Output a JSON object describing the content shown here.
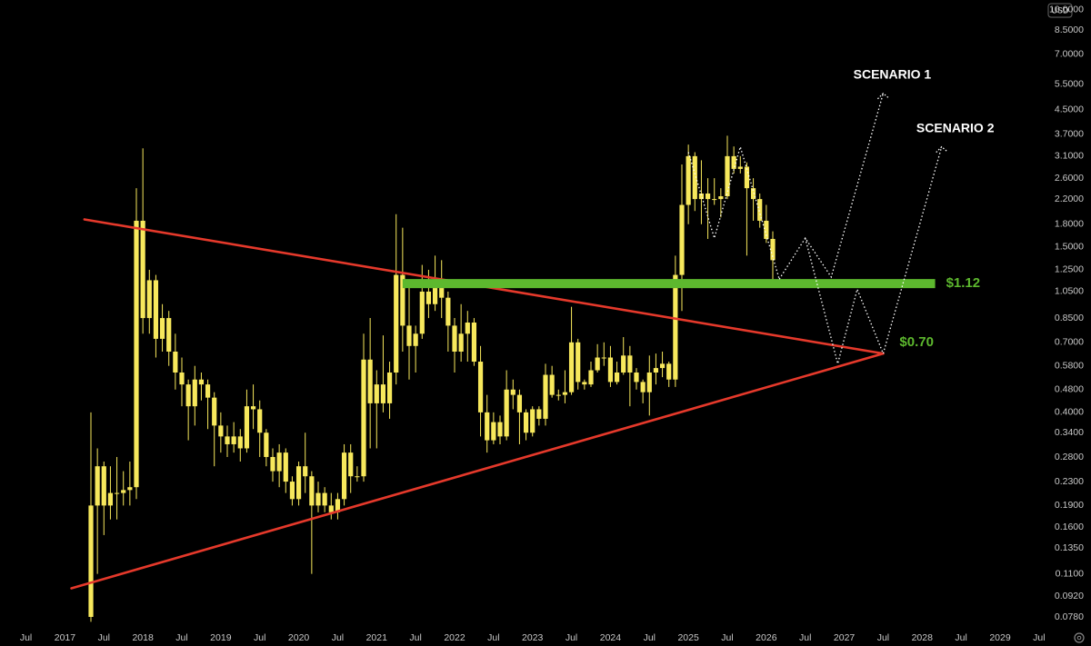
{
  "chart_data": {
    "type": "candlestick",
    "currency": "USD",
    "log_scale": true,
    "color": "#f7e85c",
    "x": [
      "2017-05",
      "2017-06",
      "2017-07",
      "2017-08",
      "2017-09",
      "2017-10",
      "2017-11",
      "2017-12",
      "2018-01",
      "2018-02",
      "2018-03",
      "2018-04",
      "2018-05",
      "2018-06",
      "2018-07",
      "2018-08",
      "2018-09",
      "2018-10",
      "2018-11",
      "2018-12",
      "2019-01",
      "2019-02",
      "2019-03",
      "2019-04",
      "2019-05",
      "2019-06",
      "2019-07",
      "2019-08",
      "2019-09",
      "2019-10",
      "2019-11",
      "2019-12",
      "2020-01",
      "2020-02",
      "2020-03",
      "2020-04",
      "2020-05",
      "2020-06",
      "2020-07",
      "2020-08",
      "2020-09",
      "2020-10",
      "2020-11",
      "2020-12",
      "2021-01",
      "2021-02",
      "2021-03",
      "2021-04",
      "2021-05",
      "2021-06",
      "2021-07",
      "2021-08",
      "2021-09",
      "2021-10",
      "2021-11",
      "2021-12",
      "2022-01",
      "2022-02",
      "2022-03",
      "2022-04",
      "2022-05",
      "2022-06",
      "2022-07",
      "2022-08",
      "2022-09",
      "2022-10",
      "2022-11",
      "2022-12",
      "2023-01",
      "2023-02",
      "2023-03",
      "2023-04",
      "2023-05",
      "2023-06",
      "2023-07",
      "2023-08",
      "2023-09",
      "2023-10",
      "2023-11",
      "2023-12",
      "2024-01",
      "2024-02",
      "2024-03",
      "2024-04",
      "2024-05",
      "2024-06",
      "2024-07",
      "2024-08",
      "2024-09",
      "2024-10",
      "2024-11",
      "2024-12",
      "2025-01",
      "2025-02",
      "2025-03",
      "2025-04",
      "2025-05",
      "2025-06",
      "2025-07",
      "2025-08",
      "2025-09",
      "2025-10",
      "2025-11",
      "2025-12",
      "2026-01",
      "2026-02"
    ],
    "open": [
      0.078,
      0.19,
      0.26,
      0.19,
      0.21,
      0.21,
      0.215,
      0.22,
      1.85,
      0.85,
      1.15,
      0.72,
      0.85,
      0.65,
      0.55,
      0.5,
      0.42,
      0.52,
      0.5,
      0.45,
      0.36,
      0.33,
      0.31,
      0.33,
      0.3,
      0.42,
      0.41,
      0.34,
      0.28,
      0.25,
      0.29,
      0.23,
      0.2,
      0.26,
      0.24,
      0.19,
      0.21,
      0.19,
      0.18,
      0.2,
      0.29,
      0.24,
      0.24,
      0.61,
      0.43,
      0.5,
      0.43,
      0.55,
      1.2,
      0.8,
      0.68,
      0.75,
      1.05,
      0.95,
      1.1,
      1.0,
      0.8,
      0.65,
      0.75,
      0.82,
      0.6,
      0.4,
      0.32,
      0.37,
      0.33,
      0.48,
      0.46,
      0.4,
      0.34,
      0.41,
      0.38,
      0.54,
      0.46,
      0.46,
      0.47,
      0.7,
      0.51,
      0.5,
      0.56,
      0.62,
      0.62,
      0.51,
      0.55,
      0.63,
      0.55,
      0.51,
      0.47,
      0.55,
      0.57,
      0.59,
      0.52,
      1.2,
      2.1,
      3.1,
      2.2,
      2.3,
      2.2,
      2.2,
      2.25,
      3.1,
      2.8,
      2.85,
      2.4,
      2.2,
      1.85,
      1.6
    ],
    "high": [
      0.4,
      0.3,
      0.27,
      0.26,
      0.28,
      0.25,
      0.27,
      2.4,
      3.3,
      1.25,
      1.2,
      0.95,
      0.9,
      0.75,
      0.62,
      0.52,
      0.58,
      0.55,
      0.52,
      0.47,
      0.4,
      0.36,
      0.37,
      0.35,
      0.48,
      0.5,
      0.44,
      0.35,
      0.3,
      0.31,
      0.3,
      0.24,
      0.27,
      0.34,
      0.25,
      0.23,
      0.22,
      0.21,
      0.21,
      0.31,
      0.31,
      0.26,
      0.75,
      0.85,
      0.56,
      0.74,
      0.6,
      1.95,
      1.75,
      1.1,
      0.8,
      1.3,
      1.25,
      1.4,
      1.35,
      1.05,
      0.85,
      0.95,
      0.9,
      0.85,
      0.68,
      0.46,
      0.4,
      0.39,
      0.56,
      0.52,
      0.48,
      0.41,
      0.42,
      0.42,
      0.59,
      0.58,
      0.48,
      0.56,
      0.93,
      0.72,
      0.52,
      0.6,
      0.69,
      0.7,
      0.68,
      0.6,
      0.73,
      0.68,
      0.57,
      0.52,
      0.63,
      0.64,
      0.65,
      0.6,
      1.4,
      2.9,
      3.4,
      3.2,
      3.0,
      2.6,
      2.6,
      2.4,
      3.65,
      3.35,
      3.1,
      2.95,
      2.6,
      2.3,
      2.1,
      1.7
    ],
    "low": [
      0.075,
      0.11,
      0.15,
      0.17,
      0.17,
      0.19,
      0.19,
      0.2,
      0.75,
      0.75,
      0.62,
      0.65,
      0.58,
      0.48,
      0.42,
      0.32,
      0.36,
      0.44,
      0.35,
      0.26,
      0.29,
      0.28,
      0.29,
      0.27,
      0.29,
      0.35,
      0.28,
      0.26,
      0.23,
      0.22,
      0.21,
      0.19,
      0.19,
      0.21,
      0.11,
      0.18,
      0.18,
      0.17,
      0.17,
      0.19,
      0.21,
      0.23,
      0.23,
      0.3,
      0.3,
      0.4,
      0.38,
      0.5,
      0.65,
      0.52,
      0.55,
      0.72,
      0.85,
      0.9,
      0.85,
      0.65,
      0.55,
      0.6,
      0.6,
      0.58,
      0.33,
      0.29,
      0.31,
      0.31,
      0.32,
      0.41,
      0.31,
      0.32,
      0.33,
      0.36,
      0.36,
      0.45,
      0.44,
      0.43,
      0.46,
      0.48,
      0.48,
      0.49,
      0.55,
      0.58,
      0.49,
      0.5,
      0.54,
      0.42,
      0.48,
      0.43,
      0.39,
      0.5,
      0.53,
      0.49,
      0.49,
      0.9,
      1.8,
      2.0,
      1.8,
      1.6,
      2.1,
      1.9,
      2.2,
      2.7,
      2.7,
      1.4,
      1.85,
      1.75,
      1.55,
      1.12
    ],
    "close": [
      0.19,
      0.26,
      0.19,
      0.21,
      0.21,
      0.215,
      0.22,
      1.85,
      0.85,
      1.15,
      0.72,
      0.85,
      0.65,
      0.55,
      0.5,
      0.42,
      0.52,
      0.5,
      0.45,
      0.36,
      0.33,
      0.31,
      0.33,
      0.3,
      0.42,
      0.41,
      0.34,
      0.28,
      0.25,
      0.29,
      0.23,
      0.2,
      0.26,
      0.24,
      0.19,
      0.21,
      0.19,
      0.18,
      0.2,
      0.29,
      0.24,
      0.24,
      0.61,
      0.43,
      0.5,
      0.43,
      0.55,
      1.2,
      0.8,
      0.68,
      0.75,
      1.05,
      0.95,
      1.1,
      1.0,
      0.8,
      0.65,
      0.75,
      0.82,
      0.6,
      0.4,
      0.32,
      0.37,
      0.33,
      0.48,
      0.46,
      0.4,
      0.34,
      0.41,
      0.38,
      0.54,
      0.46,
      0.46,
      0.47,
      0.7,
      0.51,
      0.5,
      0.56,
      0.62,
      0.62,
      0.51,
      0.55,
      0.63,
      0.55,
      0.51,
      0.47,
      0.55,
      0.57,
      0.59,
      0.52,
      1.2,
      2.1,
      3.1,
      2.2,
      2.3,
      2.2,
      2.2,
      2.25,
      3.1,
      2.8,
      2.85,
      2.4,
      2.2,
      1.85,
      1.6,
      1.35
    ],
    "xlim": [
      "2016-03",
      "2029-08"
    ],
    "xticks": [
      {
        "value": "2016-07",
        "label": "Jul"
      },
      {
        "value": "2017-01",
        "label": "2017"
      },
      {
        "value": "2017-07",
        "label": "Jul"
      },
      {
        "value": "2018-01",
        "label": "2018"
      },
      {
        "value": "2018-07",
        "label": "Jul"
      },
      {
        "value": "2019-01",
        "label": "2019"
      },
      {
        "value": "2019-07",
        "label": "Jul"
      },
      {
        "value": "2020-01",
        "label": "2020"
      },
      {
        "value": "2020-07",
        "label": "Jul"
      },
      {
        "value": "2021-01",
        "label": "2021"
      },
      {
        "value": "2021-07",
        "label": "Jul"
      },
      {
        "value": "2022-01",
        "label": "2022"
      },
      {
        "value": "2022-07",
        "label": "Jul"
      },
      {
        "value": "2023-01",
        "label": "2023"
      },
      {
        "value": "2023-07",
        "label": "Jul"
      },
      {
        "value": "2024-01",
        "label": "2024"
      },
      {
        "value": "2024-07",
        "label": "Jul"
      },
      {
        "value": "2025-01",
        "label": "2025"
      },
      {
        "value": "2025-07",
        "label": "Jul"
      },
      {
        "value": "2026-01",
        "label": "2026"
      },
      {
        "value": "2026-07",
        "label": "Jul"
      },
      {
        "value": "2027-01",
        "label": "2027"
      },
      {
        "value": "2027-07",
        "label": "Jul"
      },
      {
        "value": "2028-01",
        "label": "2028"
      },
      {
        "value": "2028-07",
        "label": "Jul"
      },
      {
        "value": "2029-01",
        "label": "2029"
      },
      {
        "value": "2029-07",
        "label": "Jul"
      }
    ],
    "ylim": [
      0.072,
      10.8
    ],
    "yticks": [
      {
        "value": 10,
        "label": "10.0000"
      },
      {
        "value": 8.5,
        "label": "8.5000"
      },
      {
        "value": 7,
        "label": "7.0000"
      },
      {
        "value": 5.5,
        "label": "5.5000"
      },
      {
        "value": 4.5,
        "label": "4.5000"
      },
      {
        "value": 3.7,
        "label": "3.7000"
      },
      {
        "value": 3.1,
        "label": "3.1000"
      },
      {
        "value": 2.6,
        "label": "2.6000"
      },
      {
        "value": 2.2,
        "label": "2.2000"
      },
      {
        "value": 1.8,
        "label": "1.8000"
      },
      {
        "value": 1.5,
        "label": "1.5000"
      },
      {
        "value": 1.25,
        "label": "1.2500"
      },
      {
        "value": 1.05,
        "label": "1.0500"
      },
      {
        "value": 0.85,
        "label": "0.8500"
      },
      {
        "value": 0.7,
        "label": "0.7000"
      },
      {
        "value": 0.58,
        "label": "0.5800"
      },
      {
        "value": 0.48,
        "label": "0.4800"
      },
      {
        "value": 0.4,
        "label": "0.4000"
      },
      {
        "value": 0.34,
        "label": "0.3400"
      },
      {
        "value": 0.28,
        "label": "0.2800"
      },
      {
        "value": 0.23,
        "label": "0.2300"
      },
      {
        "value": 0.19,
        "label": "0.1900"
      },
      {
        "value": 0.16,
        "label": "0.1600"
      },
      {
        "value": 0.135,
        "label": "0.1350"
      },
      {
        "value": 0.11,
        "label": "0.1100"
      },
      {
        "value": 0.092,
        "label": "0.0920"
      },
      {
        "value": 0.078,
        "label": "0.0780"
      }
    ],
    "trendlines": [
      {
        "x": [
          "2017-04",
          "2027-07"
        ],
        "y": [
          1.87,
          0.64
        ],
        "color": "#e5392b"
      },
      {
        "x": [
          "2017-02",
          "2027-07"
        ],
        "y": [
          0.098,
          0.64
        ],
        "color": "#e5392b"
      }
    ],
    "zone": {
      "x": [
        "2021-05",
        "2028-03"
      ],
      "value": 1.12,
      "label": "$1.12",
      "color": "#5db82e"
    },
    "level": {
      "value": 0.7,
      "label": "$0.70",
      "color": "#5db82e"
    },
    "paths": [
      {
        "x": [
          "2025-01",
          "2025-05",
          "2025-09",
          "2026-03"
        ],
        "y": [
          3.2,
          1.61,
          3.34,
          1.16
        ]
      },
      {
        "label": "SCENARIO 1",
        "x": [
          "2026-03",
          "2026-07",
          "2026-11",
          "2027-07"
        ],
        "y": [
          1.16,
          1.61,
          1.18,
          5.12
        ]
      },
      {
        "label": "SCENARIO 2",
        "x": [
          "2026-07",
          "2026-12",
          "2027-03",
          "2027-07",
          "2028-04"
        ],
        "y": [
          1.61,
          0.59,
          1.07,
          0.64,
          3.34
        ]
      }
    ]
  }
}
